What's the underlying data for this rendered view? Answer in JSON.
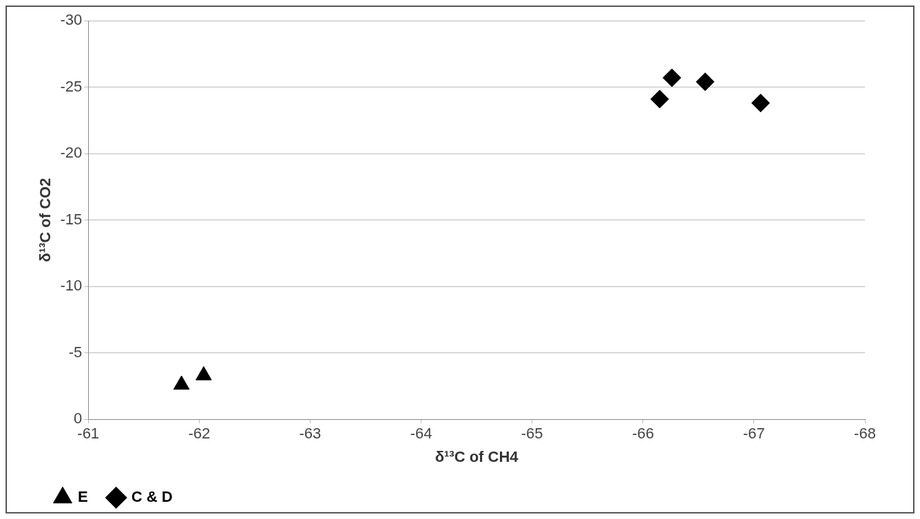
{
  "chart_data": {
    "type": "scatter",
    "xlabel": "δ¹³C of CH4",
    "ylabel": "δ¹³C of CO2",
    "series": [
      {
        "name": "E",
        "color": "#000000",
        "marker": "triangle",
        "x": [
          -61.84,
          -62.04
        ],
        "values": [
          -2.6,
          -3.3
        ]
      },
      {
        "name": "C & D",
        "color": "#000000",
        "marker": "diamond",
        "x": [
          -66.15,
          -66.26,
          -66.56,
          -67.06
        ],
        "values": [
          -24.1,
          -25.7,
          -25.4,
          -23.8
        ]
      }
    ],
    "xlim": [
      -61,
      -68
    ],
    "xticks": [
      -61,
      -62,
      -63,
      -64,
      -65,
      -66,
      -67,
      -68
    ],
    "ylim": [
      0,
      -30
    ],
    "yticks": [
      0,
      -5,
      -10,
      -15,
      -20,
      -25,
      -30
    ],
    "grid": "y",
    "legend": "bottom left"
  }
}
